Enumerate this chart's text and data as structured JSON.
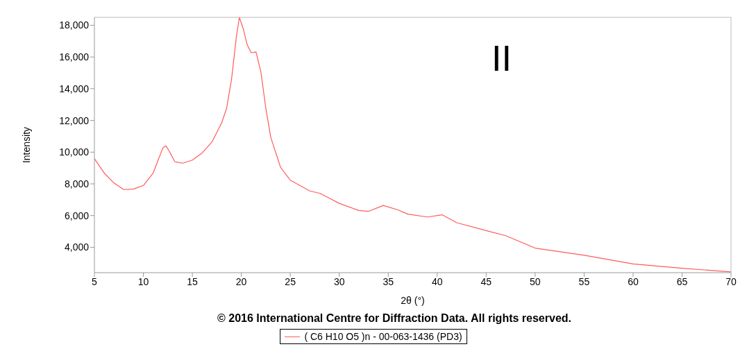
{
  "chart_data": {
    "type": "line",
    "xlabel": "2θ (°)",
    "ylabel": "Intensity",
    "annotations": [
      "II",
      "© 2016 International Centre for Diffraction Data. All rights reserved."
    ],
    "xlim": [
      5,
      70
    ],
    "xticks": [
      5,
      10,
      15,
      20,
      25,
      30,
      35,
      40,
      45,
      50,
      55,
      60,
      65,
      70
    ],
    "ylim": [
      2400,
      18500
    ],
    "yticks": [
      {
        "value": 4000,
        "label": "4,000"
      },
      {
        "value": 6000,
        "label": "6,000"
      },
      {
        "value": 8000,
        "label": "8,000"
      },
      {
        "value": 10000,
        "label": "10,000"
      },
      {
        "value": 12000,
        "label": "12,000"
      },
      {
        "value": 14000,
        "label": "14,000"
      },
      {
        "value": 16000,
        "label": "16,000"
      },
      {
        "value": 18000,
        "label": "18,000"
      }
    ],
    "grid": false,
    "legend": "bottom",
    "marker": "none",
    "line_style": "solid",
    "series": [
      {
        "name": "( C6 H10 O5 )n - 00-063-1436 (PD3)",
        "color": "#ff5a5a",
        "x": [
          5,
          6,
          7,
          8,
          9,
          10,
          11,
          11.5,
          12,
          12.3,
          12.7,
          13.2,
          14,
          15,
          16,
          17,
          18,
          18.5,
          19,
          19.5,
          19.8,
          20.2,
          20.6,
          21,
          21.5,
          22,
          22.5,
          23,
          24,
          25,
          27,
          28,
          29,
          30,
          32,
          33,
          34.5,
          36,
          37,
          39,
          40.5,
          42,
          45,
          47,
          50,
          55,
          60,
          65,
          70
        ],
        "values": [
          9590,
          8680,
          8050,
          7640,
          7680,
          7900,
          8680,
          9500,
          10270,
          10400,
          10000,
          9400,
          9300,
          9500,
          9950,
          10640,
          11860,
          12770,
          14590,
          17300,
          18500,
          17770,
          16770,
          16270,
          16320,
          15050,
          12770,
          10950,
          9050,
          8230,
          7550,
          7410,
          7090,
          6770,
          6320,
          6270,
          6640,
          6360,
          6090,
          5910,
          6050,
          5550,
          5050,
          4730,
          3950,
          3500,
          2950,
          2680,
          2450
        ]
      }
    ]
  }
}
